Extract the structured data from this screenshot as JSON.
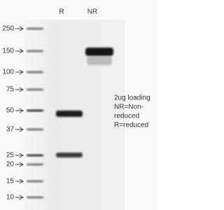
{
  "lanes": [
    "R",
    "NR"
  ],
  "markers": [
    "250",
    "150",
    "100",
    "75",
    "50",
    "37",
    "25",
    "20",
    "15",
    "10"
  ],
  "note": [
    "2ug loading",
    "NR=Non-",
    "reduced",
    "R=reduced"
  ]
}
